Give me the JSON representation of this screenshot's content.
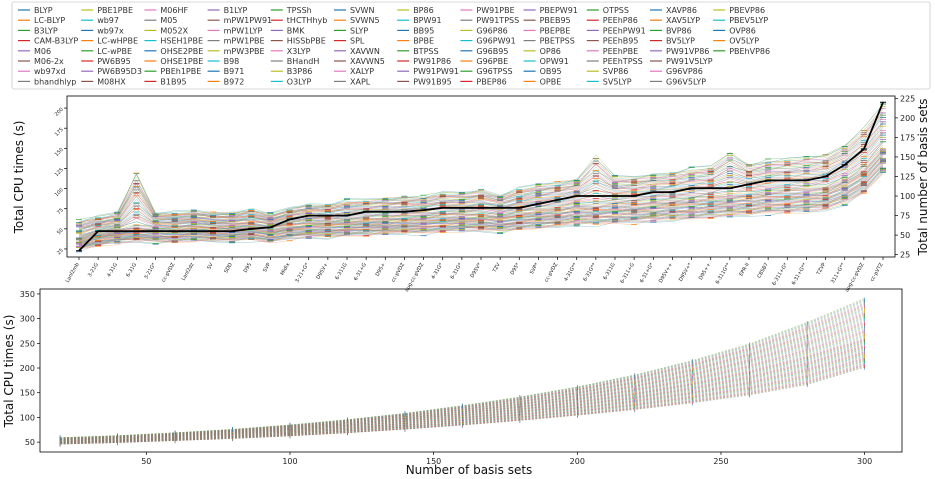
{
  "chart_data": [
    {
      "type": "line",
      "panel": "top",
      "xlabel": "",
      "ylabel": "Total CPU times (s)",
      "y2label": "Total number of basis sets",
      "ylim": [
        15,
        215
      ],
      "yticks": [
        25,
        50,
        75,
        100,
        125,
        150,
        175,
        200
      ],
      "y2lim": [
        22,
        228
      ],
      "y2ticks": [
        25,
        50,
        75,
        100,
        125,
        150,
        175,
        200,
        225
      ],
      "grid": false,
      "legend": "top",
      "categories": [
        "Lanl2mb",
        "3-21G",
        "4-31G",
        "6-31G",
        "3-21G*",
        "cc-pVDZ",
        "Lanl2dz",
        "SV",
        "SDD",
        "D95",
        "SVP",
        "Midix",
        "3-21+G*",
        "D95V+",
        "6-311G",
        "6-31+G",
        "D95+",
        "cc-pVDZ",
        "aug-cc-pVDZ",
        "4-31G*",
        "6-31G*",
        "D95V*",
        "TZV",
        "D95*",
        "SVP*",
        "cc-pVDZ",
        "4-31G**",
        "6-31G**",
        "6-311G",
        "6-311+G",
        "6-31+G*",
        "D95V++",
        "D95V+*",
        "D95++",
        "6-311G**",
        "EPR-II",
        "CBSB7",
        "6-311+G*",
        "6-31+G**",
        "TZVP",
        "311+G**",
        "aug-cc-pVDZ",
        "cc-pVTZ"
      ],
      "basis_counts": [
        30,
        55,
        55,
        55,
        55,
        55,
        55,
        55,
        55,
        58,
        60,
        70,
        75,
        75,
        75,
        80,
        80,
        80,
        82,
        85,
        85,
        85,
        85,
        85,
        90,
        95,
        100,
        100,
        100,
        100,
        105,
        105,
        110,
        110,
        110,
        115,
        120,
        120,
        120,
        125,
        140,
        160,
        220
      ],
      "mean_times": [
        37,
        45,
        48,
        51,
        50,
        50,
        52,
        51,
        51,
        53,
        50,
        55,
        58,
        58,
        60,
        61,
        62,
        63,
        64,
        66,
        67,
        68,
        66,
        70,
        72,
        74,
        78,
        78,
        80,
        80,
        82,
        84,
        86,
        88,
        90,
        92,
        95,
        96,
        98,
        100,
        110,
        125,
        150
      ],
      "min_times": [
        25,
        30,
        33,
        35,
        34,
        34,
        36,
        35,
        35,
        37,
        34,
        38,
        40,
        40,
        42,
        43,
        44,
        45,
        45,
        47,
        48,
        48,
        47,
        50,
        52,
        53,
        56,
        56,
        58,
        58,
        60,
        62,
        63,
        65,
        66,
        68,
        70,
        71,
        72,
        74,
        82,
        95,
        120
      ],
      "max_times": [
        60,
        65,
        70,
        120,
        70,
        70,
        72,
        70,
        70,
        74,
        68,
        76,
        80,
        80,
        85,
        86,
        88,
        90,
        90,
        95,
        95,
        98,
        92,
        100,
        105,
        108,
        112,
        140,
        115,
        115,
        118,
        120,
        125,
        128,
        145,
        130,
        135,
        137,
        140,
        142,
        155,
        175,
        205
      ]
    },
    {
      "type": "line",
      "panel": "bottom",
      "xlabel": "Number of basis sets",
      "ylabel": "Total CPU times (s)",
      "xlim": [
        13,
        313
      ],
      "xticks": [
        50,
        100,
        150,
        200,
        250,
        300
      ],
      "ylim": [
        30,
        360
      ],
      "yticks": [
        50,
        100,
        150,
        200,
        250,
        300,
        350
      ],
      "grid": false,
      "x": [
        20,
        40,
        60,
        80,
        100,
        120,
        140,
        160,
        180,
        200,
        220,
        240,
        260,
        280,
        300
      ],
      "mean_times": [
        52,
        56,
        61,
        67,
        74,
        83,
        93,
        105,
        118,
        133,
        150,
        170,
        195,
        225,
        260
      ],
      "min_times": [
        45,
        48,
        52,
        56,
        61,
        67,
        74,
        82,
        91,
        101,
        112,
        125,
        140,
        160,
        195
      ],
      "max_times": [
        60,
        64,
        70,
        77,
        86,
        97,
        110,
        126,
        144,
        165,
        190,
        220,
        255,
        300,
        350
      ]
    }
  ],
  "legend": {
    "entries": [
      "BLYP",
      "LC-BLYP",
      "B3LYP",
      "CAM-B3LYP",
      "M06",
      "M06-2x",
      "wb97xd",
      "bhandhlyp",
      "PBE1PBE",
      "wb97",
      "wb97x",
      "LC-wHPBE",
      "LC-wPBE",
      "PW6B95",
      "PW6B95D3",
      "M08HX",
      "M06HF",
      "M05",
      "M052X",
      "HSEH1PBE",
      "OHSE2PBE",
      "OHSE1PBE",
      "PBEh1PBE",
      "B1B95",
      "B1LYP",
      "mPW1PW91",
      "mPW1LYP",
      "mPW1PBE",
      "mPW3PBE",
      "B98",
      "B971",
      "B972",
      "TPSSh",
      "tHCTHhyb",
      "BMK",
      "HISSbPBE",
      "X3LYP",
      "BHandH",
      "B3P86",
      "O3LYP",
      "SVWN",
      "SVWN5",
      "SLYP",
      "SPL",
      "XAVWN",
      "XAVWN5",
      "XALYP",
      "XAPL",
      "BP86",
      "BPW91",
      "BB95",
      "BPBE",
      "BTPSS",
      "PW91P86",
      "PW91PW91",
      "PW91B95",
      "PW91PBE",
      "PW91TPSS",
      "G96P86",
      "G96PW91",
      "G96B95",
      "G96PBE",
      "G96TPSS",
      "PBEP86",
      "PBEPW91",
      "PBEB95",
      "PBEPBE",
      "PBETPSS",
      "OP86",
      "OPW91",
      "OB95",
      "OPBE",
      "OTPSS",
      "PEEhP86",
      "PEEhPW91",
      "PEEhB95",
      "PEEhPBE",
      "PEEhTPSS",
      "SVP86",
      "SV5LYP",
      "XAVP86",
      "XAV5LYP",
      "BVP86",
      "BV5LYP",
      "PW91VP86",
      "PW91V5LYP",
      "G96VP86",
      "G96V5LYP",
      "PBEVP86",
      "PBEV5LYP",
      "OVP86",
      "OV5LYP",
      "PBEhVP86"
    ],
    "colors": [
      "#1f77b4",
      "#ff7f0e",
      "#2ca02c",
      "#d62728",
      "#9467bd",
      "#8c564b",
      "#e377c2",
      "#7f7f7f",
      "#bcbd22",
      "#17becf"
    ],
    "mean_line_color": "#000000"
  }
}
